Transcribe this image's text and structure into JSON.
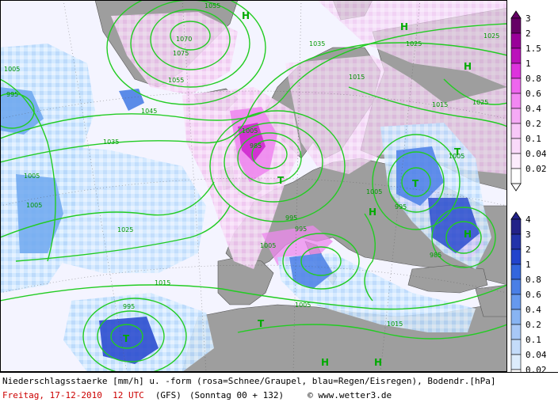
{
  "map": {
    "isobar_labels": [
      "1055",
      "1070",
      "1075",
      "1055",
      "1045",
      "1035",
      "1025",
      "1035",
      "1025",
      "1005",
      "995",
      "985",
      "1005",
      "1025",
      "1015",
      "995",
      "1005",
      "1005",
      "995",
      "985",
      "1005",
      "1015",
      "995",
      "1015",
      "1005",
      "1025",
      "1005",
      "995",
      "1005",
      "1015"
    ],
    "pressure_systems": [
      "H",
      "H",
      "H",
      "T",
      "T",
      "T",
      "H",
      "T",
      "H",
      "T",
      "H",
      "H"
    ],
    "colors": {
      "sea": "#f4f4ff",
      "land": "#9e9e9e",
      "isobar": "#22cc22",
      "snow_light": "#f6d8f6",
      "snow_mid": "#ee88ee",
      "snow_heavy": "#cc22cc",
      "rain_light": "#cfe8ff",
      "rain_mid": "#6fa8f0",
      "rain_heavy": "#2244cc"
    }
  },
  "legend": {
    "snow_scale": {
      "labels": [
        "3",
        "2",
        "1.5",
        "1",
        "0.8",
        "0.6",
        "0.4",
        "0.2",
        "0.1",
        "0.04",
        "0.02"
      ],
      "colors": [
        "#660066",
        "#990099",
        "#bb11bb",
        "#dd33dd",
        "#ee66ee",
        "#f288f2",
        "#f5aaf5",
        "#f8c8f8",
        "#fadafa",
        "#fcecfc",
        "#ffffff"
      ]
    },
    "rain_scale": {
      "labels": [
        "4",
        "3",
        "2",
        "1",
        "0.8",
        "0.6",
        "0.4",
        "0.2",
        "0.1",
        "0.04",
        "0.02"
      ],
      "colors": [
        "#222288",
        "#2233aa",
        "#2244cc",
        "#3366dd",
        "#4a7fe6",
        "#6699ee",
        "#88b4f2",
        "#a8c8f6",
        "#c4dcfa",
        "#dcecfc",
        "#ffffff"
      ]
    }
  },
  "caption": {
    "line1": "Niederschlagsstaerke [mm/h] u. -form (rosa=Schnee/Graupel, blau=Regen/Eisregen), Bodendr.[hPa]",
    "date": "Freitag, 17-12-2010  12 UTC",
    "model": "(GFS)",
    "run": "(Sonntag 00 + 132)",
    "copyright": "© www.wetter3.de"
  }
}
